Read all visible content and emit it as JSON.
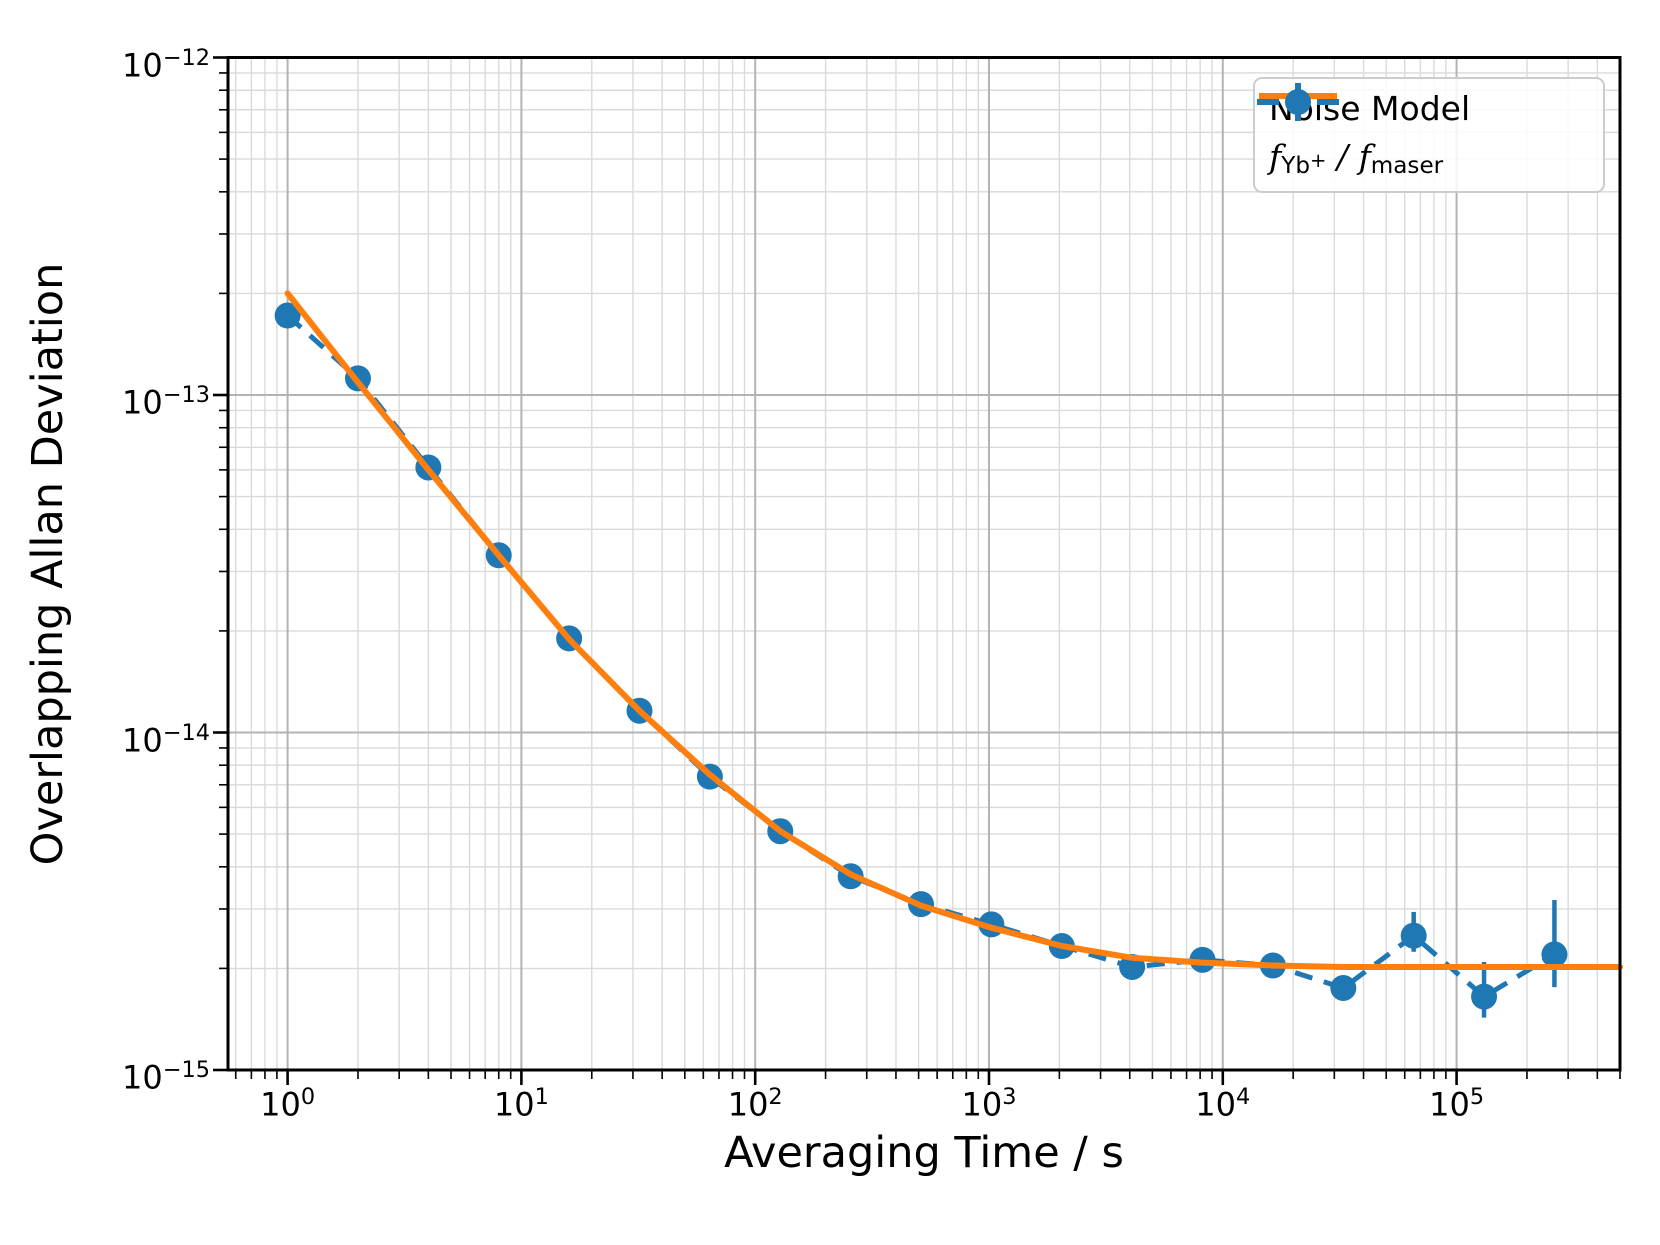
{
  "chart_data": {
    "type": "line",
    "title": "",
    "xlabel": "Averaging Time / s",
    "ylabel": "Overlapping Allan Deviation",
    "x_scale": "log",
    "y_scale": "log",
    "xlim": [
      0.556,
      500000
    ],
    "ylim": [
      1e-15,
      1e-12
    ],
    "grid": "major and minor, both axes",
    "legend_position": "upper right",
    "tick_base": "10",
    "x_tick_exponents": [
      0,
      1,
      2,
      3,
      4,
      5
    ],
    "y_tick_exponents": [
      -12,
      -13,
      -14,
      -15
    ],
    "series": [
      {
        "name": "Noise Model",
        "style": "solid-line",
        "color": "#ff7f0e",
        "x": [
          1,
          2,
          4,
          8,
          16,
          32,
          64,
          128,
          256,
          512,
          1024,
          2048,
          4096,
          8192,
          16384,
          32768,
          65536,
          131072,
          262144,
          500000
        ],
        "y": [
          2e-13,
          1.09e-13,
          6e-14,
          3.35e-14,
          1.89e-14,
          1.16e-14,
          7.5e-15,
          5.1e-15,
          3.8e-15,
          3.07e-15,
          2.64e-15,
          2.33e-15,
          2.15e-15,
          2.08e-15,
          2.04e-15,
          2.02e-15,
          2.02e-15,
          2.02e-15,
          2.02e-15,
          2.02e-15
        ]
      },
      {
        "name": "f_Yb+ / f_maser",
        "style": "dashed-line-circle-markers-errorbars",
        "color": "#1f77b4",
        "x": [
          1,
          2,
          4,
          8,
          16,
          32,
          64,
          128,
          256,
          512,
          1024,
          2048,
          4096,
          8192,
          16384,
          32768,
          65536,
          131072,
          262144
        ],
        "y": [
          1.72e-13,
          1.12e-13,
          6.1e-14,
          3.35e-14,
          1.9e-14,
          1.16e-14,
          7.4e-15,
          5.1e-15,
          3.75e-15,
          3.1e-15,
          2.7e-15,
          2.33e-15,
          2.02e-15,
          2.12e-15,
          2.04e-15,
          1.75e-15,
          2.5e-15,
          1.65e-15,
          2.2e-15
        ],
        "err_lo": [
          4e-15,
          2.5e-15,
          1.5e-15,
          8e-16,
          5e-16,
          3e-16,
          2e-16,
          1.5e-16,
          1.2e-16,
          1e-16,
          1e-16,
          1e-16,
          1e-16,
          1.2e-16,
          1.5e-16,
          1.2e-16,
          2.6e-16,
          2.2e-16,
          4.4e-16
        ],
        "err_hi": [
          4e-15,
          2.5e-15,
          1.5e-15,
          8e-16,
          5e-16,
          3e-16,
          2e-16,
          1.5e-16,
          1.2e-16,
          1e-16,
          1e-16,
          1e-16,
          1e-16,
          1.2e-16,
          1.5e-16,
          1e-16,
          4.4e-16,
          4.4e-16,
          9.9e-16
        ]
      }
    ],
    "colors": {
      "noise_model": "#ff7f0e",
      "measurement": "#1f77b4",
      "major_grid": "#b3b3b3",
      "minor_grid": "#dadada",
      "spine": "#000000",
      "legend_border": "#cccccc"
    }
  },
  "legend": {
    "noise_model_label": "Noise Model",
    "ratio": {
      "base1": "f",
      "sub1": "Yb",
      "sup1": "+",
      "divider": " / ",
      "base2": "f",
      "sub2": "maser"
    }
  }
}
